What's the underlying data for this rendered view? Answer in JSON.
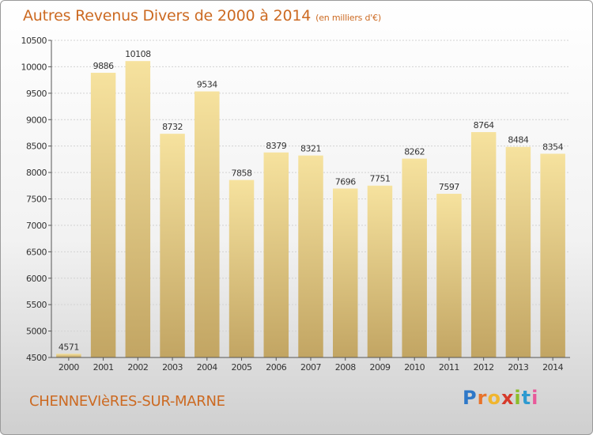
{
  "title": "Autres Revenus Divers de 2000 à 2014",
  "subtitle": "(en milliers d'€)",
  "place": "CHENNEVIèRES-SUR-MARNE",
  "logo": "Proxiti",
  "colors": {
    "title": "#cc6a22",
    "bar_light": "#f5df9a",
    "bar_dark": "#c4a866",
    "grid": "#cfcfcf"
  },
  "chart_data": {
    "type": "bar",
    "categories": [
      "2000",
      "2001",
      "2002",
      "2003",
      "2004",
      "2005",
      "2006",
      "2007",
      "2008",
      "2009",
      "2010",
      "2011",
      "2012",
      "2013",
      "2014"
    ],
    "values": [
      4571,
      9886,
      10108,
      8732,
      9534,
      7858,
      8379,
      8321,
      7696,
      7751,
      8262,
      7597,
      8764,
      8484,
      8354
    ],
    "yticks": [
      4500,
      5000,
      5500,
      6000,
      6500,
      7000,
      7500,
      8000,
      8500,
      9000,
      9500,
      10000,
      10500
    ],
    "ylim": [
      4500,
      10500
    ],
    "grid": true
  }
}
